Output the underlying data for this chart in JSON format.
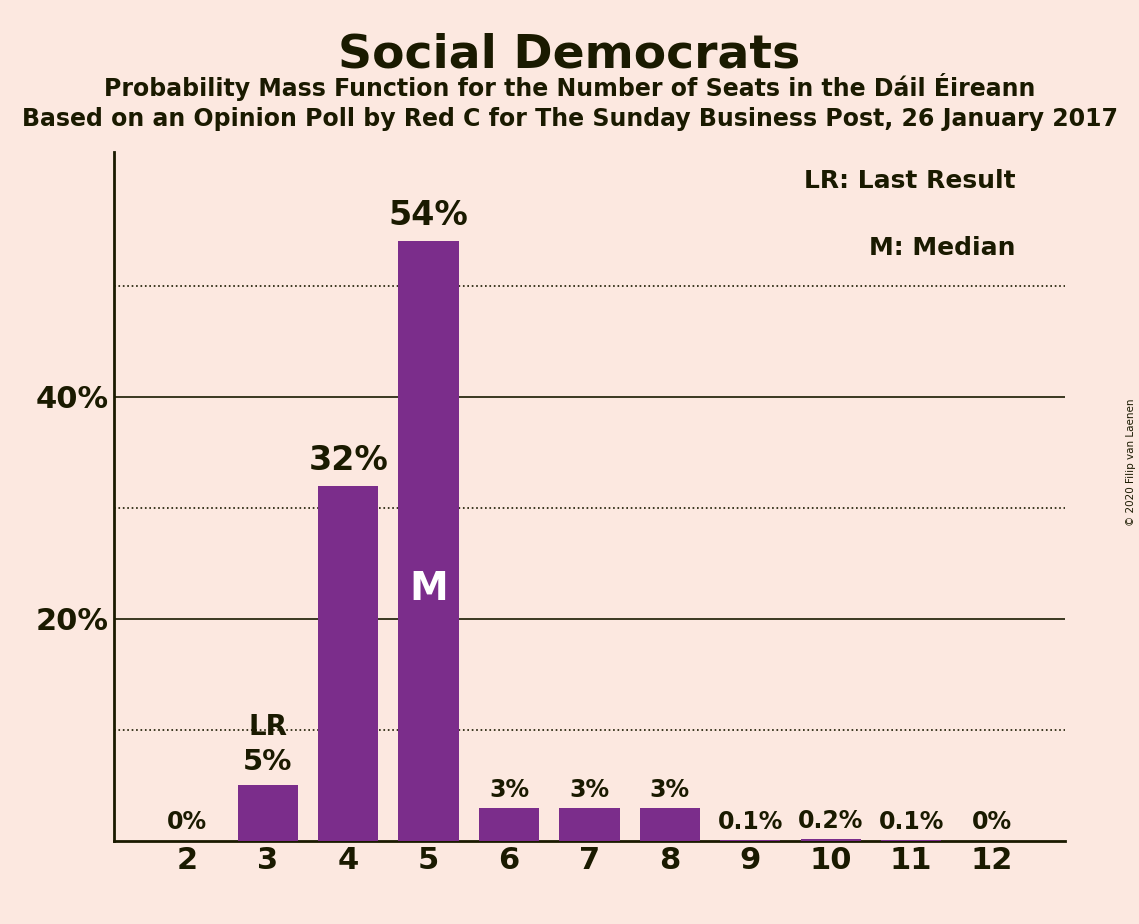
{
  "title": "Social Democrats",
  "subtitle1": "Probability Mass Function for the Number of Seats in the Dáil Éireann",
  "subtitle2": "Based on an Opinion Poll by Red C for The Sunday Business Post, 26 January 2017",
  "copyright": "© 2020 Filip van Laenen",
  "categories": [
    2,
    3,
    4,
    5,
    6,
    7,
    8,
    9,
    10,
    11,
    12
  ],
  "values": [
    0.0,
    5.0,
    32.0,
    54.0,
    3.0,
    3.0,
    3.0,
    0.1,
    0.2,
    0.1,
    0.0
  ],
  "labels": [
    "0%",
    "5%",
    "32%",
    "54%",
    "3%",
    "3%",
    "3%",
    "0.1%",
    "0.2%",
    "0.1%",
    "0%"
  ],
  "bar_color": "#7b2d8b",
  "background_color": "#fce8e0",
  "text_color": "#1a1a00",
  "solid_gridlines": [
    20,
    40
  ],
  "dotted_gridlines": [
    10,
    30,
    50
  ],
  "lr_seat": 3,
  "median_seat": 5,
  "legend_lr": "LR: Last Result",
  "legend_m": "M: Median",
  "ylim": [
    0,
    62
  ]
}
